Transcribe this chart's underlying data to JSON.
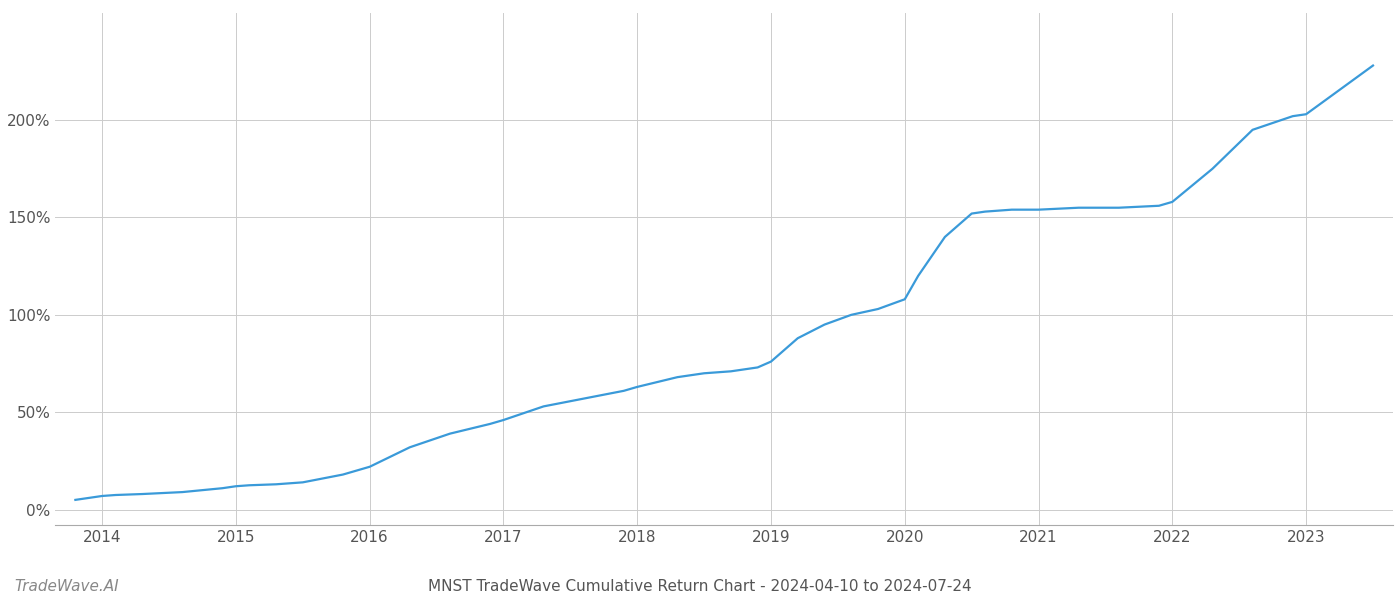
{
  "title": "MNST TradeWave Cumulative Return Chart - 2024-04-10 to 2024-07-24",
  "watermark": "TradeWave.AI",
  "line_color": "#3a9ad9",
  "background_color": "#ffffff",
  "grid_color": "#cccccc",
  "x_years": [
    2014,
    2015,
    2016,
    2017,
    2018,
    2019,
    2020,
    2021,
    2022,
    2023
  ],
  "data_points": {
    "x": [
      2013.8,
      2014.0,
      2014.1,
      2014.3,
      2014.6,
      2014.9,
      2015.0,
      2015.1,
      2015.3,
      2015.5,
      2015.8,
      2016.0,
      2016.3,
      2016.6,
      2016.9,
      2017.0,
      2017.3,
      2017.6,
      2017.9,
      2018.0,
      2018.3,
      2018.5,
      2018.7,
      2018.9,
      2019.0,
      2019.2,
      2019.4,
      2019.6,
      2019.8,
      2020.0,
      2020.1,
      2020.3,
      2020.5,
      2020.6,
      2020.8,
      2021.0,
      2021.3,
      2021.6,
      2021.9,
      2022.0,
      2022.3,
      2022.6,
      2022.9,
      2023.0,
      2023.3,
      2023.5
    ],
    "y": [
      5,
      7,
      7.5,
      8,
      9,
      11,
      12,
      12.5,
      13,
      14,
      18,
      22,
      32,
      39,
      44,
      46,
      53,
      57,
      61,
      63,
      68,
      70,
      71,
      73,
      76,
      88,
      95,
      100,
      103,
      108,
      120,
      140,
      152,
      153,
      154,
      154,
      155,
      155,
      156,
      158,
      175,
      195,
      202,
      203,
      218,
      228
    ]
  },
  "ylim": [
    -8,
    255
  ],
  "yticks": [
    0,
    50,
    100,
    150,
    200
  ],
  "xlim": [
    2013.65,
    2023.65
  ],
  "title_fontsize": 11,
  "watermark_fontsize": 11,
  "tick_fontsize": 11,
  "line_width": 1.6
}
